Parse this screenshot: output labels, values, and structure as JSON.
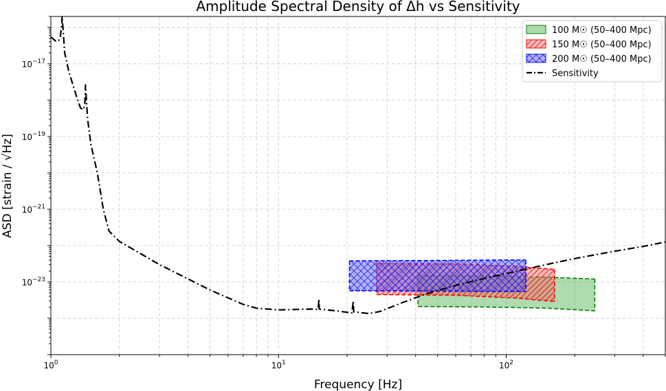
{
  "chart_data": {
    "type": "line",
    "title": "Amplitude Spectral Density of Δh vs Sensitivity",
    "xlabel": "Frequency [Hz]",
    "ylabel": "ASD [strain / √Hz]",
    "xscale": "log",
    "yscale": "log",
    "xlim": [
      1,
      500
    ],
    "ylim": [
      1e-25,
      2e-16
    ],
    "grid": true,
    "legend_position": "top-right",
    "x_tick_labels": [
      {
        "value": 1,
        "base": "10",
        "exp": "0"
      },
      {
        "value": 10,
        "base": "10",
        "exp": "1"
      },
      {
        "value": 100,
        "base": "10",
        "exp": "2"
      }
    ],
    "y_tick_labels": [
      {
        "value": 1e-17,
        "base": "10",
        "exp": "−17"
      },
      {
        "value": 1e-19,
        "base": "10",
        "exp": "−19"
      },
      {
        "value": 1e-21,
        "base": "10",
        "exp": "−21"
      },
      {
        "value": 1e-23,
        "base": "10",
        "exp": "−23"
      }
    ],
    "bands": [
      {
        "name": "100 M☉ (50–400 Mpc)",
        "color": "#008000",
        "fill": "#4caf50",
        "fill_opacity": 0.45,
        "hatch": "none",
        "f_start": 41,
        "f_end": 245,
        "upper": [
          [
            41,
            1.5e-23
          ],
          [
            80,
            1.45e-23
          ],
          [
            150,
            1.35e-23
          ],
          [
            245,
            1.2e-23
          ]
        ],
        "lower": [
          [
            41,
            2.1e-24
          ],
          [
            80,
            2.05e-24
          ],
          [
            150,
            1.9e-24
          ],
          [
            245,
            1.6e-24
          ]
        ]
      },
      {
        "name": "150 M☉ (50–400 Mpc)",
        "color": "#ff0000",
        "fill": "#ff6666",
        "fill_opacity": 0.45,
        "hatch": "diagonal",
        "f_start": 27,
        "f_end": 163,
        "upper": [
          [
            27,
            3.2e-23
          ],
          [
            60,
            3.1e-23
          ],
          [
            110,
            2.7e-23
          ],
          [
            163,
            2.2e-23
          ]
        ],
        "lower": [
          [
            27,
            4.5e-24
          ],
          [
            60,
            4.3e-24
          ],
          [
            110,
            3.6e-24
          ],
          [
            163,
            2.9e-24
          ]
        ]
      },
      {
        "name": "200 M☉ (50–400 Mpc)",
        "color": "#0000ff",
        "fill": "#6666ff",
        "fill_opacity": 0.5,
        "hatch": "cross",
        "f_start": 20.5,
        "f_end": 122,
        "upper": [
          [
            20.5,
            3.8e-23
          ],
          [
            50,
            3.9e-23
          ],
          [
            90,
            4e-23
          ],
          [
            122,
            4e-23
          ]
        ],
        "lower": [
          [
            20.5,
            5.7e-24
          ],
          [
            50,
            5.6e-24
          ],
          [
            90,
            5.5e-24
          ],
          [
            122,
            5.5e-24
          ]
        ]
      }
    ],
    "sensitivity": {
      "name": "Sensitivity",
      "color": "#000000",
      "style": "dashdot",
      "points": [
        [
          1.0,
          5.5e-17
        ],
        [
          1.05,
          4.2e-17
        ],
        [
          1.08,
          4.2e-17
        ],
        [
          1.1,
          5.5e-17
        ],
        [
          1.115,
          1.1e-16
        ],
        [
          1.12,
          2e-16
        ],
        [
          1.13,
          1e-16
        ],
        [
          1.15,
          2e-17
        ],
        [
          1.2,
          6e-18
        ],
        [
          1.3,
          1.2e-18
        ],
        [
          1.35,
          6e-19
        ],
        [
          1.39,
          5.5e-19
        ],
        [
          1.41,
          8e-19
        ],
        [
          1.42,
          2.6e-18
        ],
        [
          1.43,
          1.2e-18
        ],
        [
          1.45,
          3e-19
        ],
        [
          1.5,
          6e-20
        ],
        [
          1.6,
          1e-20
        ],
        [
          1.7,
          1e-21
        ],
        [
          1.8,
          2.5e-22
        ],
        [
          2.0,
          1.3e-22
        ],
        [
          3.0,
          3e-23
        ],
        [
          5.0,
          6e-24
        ],
        [
          7.0,
          2.4e-24
        ],
        [
          8.0,
          1.9e-24
        ],
        [
          10.0,
          1.7e-24
        ],
        [
          14.0,
          1.8e-24
        ],
        [
          14.9,
          1.75e-24
        ],
        [
          15.0,
          2.6e-24
        ],
        [
          15.05,
          3.4e-24
        ],
        [
          15.1,
          1.8e-24
        ],
        [
          18.0,
          1.6e-24
        ],
        [
          21.0,
          1.4e-24
        ],
        [
          21.2,
          2.3e-24
        ],
        [
          21.3,
          3e-24
        ],
        [
          21.4,
          1.5e-24
        ],
        [
          25.0,
          1.35e-24
        ],
        [
          28.0,
          1.55e-24
        ],
        [
          35.0,
          2.7e-24
        ],
        [
          45.0,
          4.8e-24
        ],
        [
          60.0,
          8e-24
        ],
        [
          80.0,
          1.25e-23
        ],
        [
          100.0,
          1.7e-23
        ],
        [
          150.0,
          3e-23
        ],
        [
          200.0,
          4.4e-23
        ],
        [
          300.0,
          7e-23
        ],
        [
          400.0,
          9.5e-23
        ],
        [
          500.0,
          1.25e-22
        ]
      ]
    }
  }
}
